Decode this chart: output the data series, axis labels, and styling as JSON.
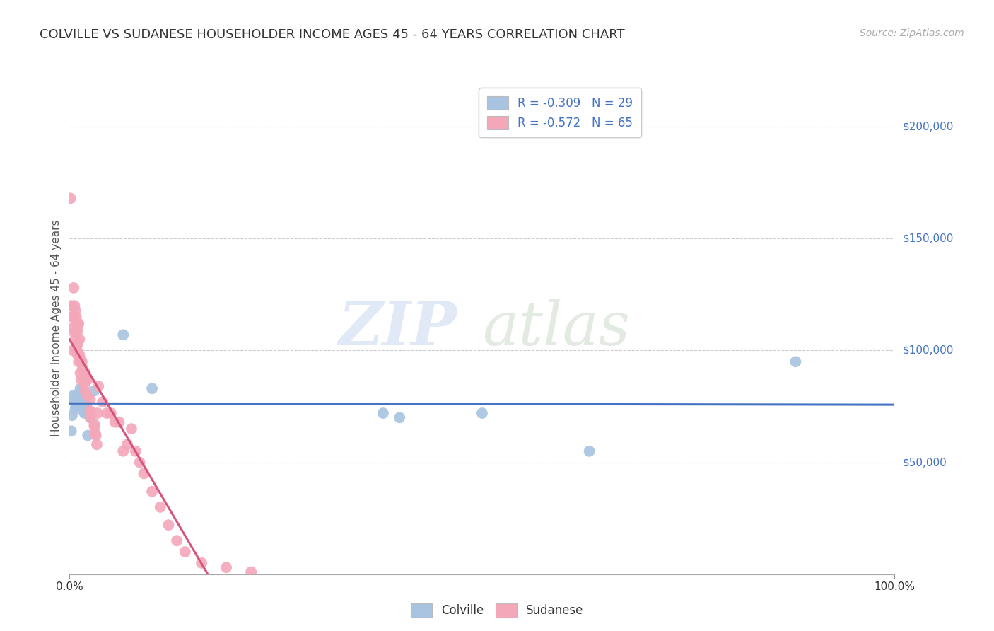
{
  "title": "COLVILLE VS SUDANESE HOUSEHOLDER INCOME AGES 45 - 64 YEARS CORRELATION CHART",
  "source": "Source: ZipAtlas.com",
  "ylabel": "Householder Income Ages 45 - 64 years",
  "legend_bottom_labels": [
    "Colville",
    "Sudanese"
  ],
  "legend_top": {
    "colville": {
      "R": "-0.309",
      "N": "29"
    },
    "sudanese": {
      "R": "-0.572",
      "N": "65"
    }
  },
  "colville_color": "#a8c4e0",
  "sudanese_color": "#f4a7b9",
  "trendline_colville_color": "#4472c4",
  "trendline_sudanese_color": "#d4547a",
  "background_color": "#ffffff",
  "watermark_zip": "ZIP",
  "watermark_atlas": "atlas",
  "xlim": [
    0.0,
    1.0
  ],
  "ylim": [
    0,
    220000
  ],
  "colville_x": [
    0.002,
    0.003,
    0.004,
    0.005,
    0.006,
    0.007,
    0.008,
    0.009,
    0.01,
    0.011,
    0.012,
    0.013,
    0.014,
    0.015,
    0.016,
    0.017,
    0.018,
    0.019,
    0.02,
    0.022,
    0.025,
    0.03,
    0.065,
    0.1,
    0.38,
    0.4,
    0.5,
    0.63,
    0.88
  ],
  "colville_y": [
    64000,
    71000,
    78000,
    80000,
    77000,
    74000,
    79000,
    75000,
    80000,
    76000,
    78000,
    83000,
    75000,
    82000,
    77000,
    73000,
    72000,
    74000,
    76000,
    62000,
    70000,
    82000,
    107000,
    83000,
    72000,
    70000,
    72000,
    55000,
    95000
  ],
  "sudanese_x": [
    0.001,
    0.002,
    0.003,
    0.004,
    0.004,
    0.005,
    0.005,
    0.006,
    0.006,
    0.007,
    0.007,
    0.008,
    0.008,
    0.009,
    0.009,
    0.009,
    0.01,
    0.01,
    0.01,
    0.011,
    0.011,
    0.012,
    0.012,
    0.013,
    0.013,
    0.014,
    0.015,
    0.016,
    0.017,
    0.018,
    0.019,
    0.019,
    0.02,
    0.021,
    0.022,
    0.025,
    0.025,
    0.025,
    0.025,
    0.03,
    0.03,
    0.031,
    0.032,
    0.033,
    0.034,
    0.035,
    0.04,
    0.045,
    0.05,
    0.055,
    0.06,
    0.065,
    0.07,
    0.075,
    0.08,
    0.085,
    0.09,
    0.1,
    0.11,
    0.12,
    0.13,
    0.14,
    0.16,
    0.19,
    0.22
  ],
  "sudanese_y": [
    168000,
    120000,
    115000,
    110000,
    100000,
    128000,
    115000,
    120000,
    108000,
    118000,
    105000,
    115000,
    102000,
    112000,
    108000,
    100000,
    110000,
    103000,
    98000,
    112000,
    95000,
    105000,
    98000,
    96000,
    90000,
    87000,
    95000,
    92000,
    88000,
    85000,
    90000,
    82000,
    88000,
    80000,
    87000,
    78000,
    73000,
    72000,
    70000,
    67000,
    66000,
    63000,
    62000,
    58000,
    72000,
    84000,
    77000,
    72000,
    72000,
    68000,
    68000,
    55000,
    58000,
    65000,
    55000,
    50000,
    45000,
    37000,
    30000,
    22000,
    15000,
    10000,
    5000,
    3000,
    1000
  ]
}
